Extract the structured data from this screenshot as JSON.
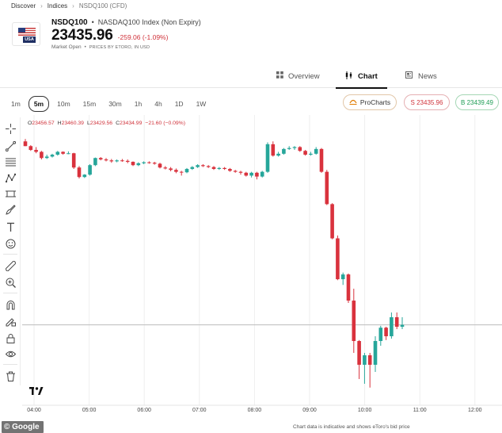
{
  "breadcrumb": {
    "items": [
      "Discover",
      "Indices",
      "NSDQ100 (CFD)"
    ]
  },
  "instrument": {
    "flag_label": "USA",
    "symbol": "NSDQ100",
    "separator": "•",
    "name": "NASDAQ100 Index (Non Expiry)",
    "price": "23435.96",
    "change": "-259.06 (-1.09%)",
    "market_status": "Market Open",
    "status_dot": "•",
    "prices_by": "PRICES BY ETORO, IN USD"
  },
  "tabs": [
    {
      "label": "Overview",
      "icon": "grid-icon",
      "active": false
    },
    {
      "label": "Chart",
      "icon": "candlestick-icon",
      "active": true
    },
    {
      "label": "News",
      "icon": "news-icon",
      "active": false
    }
  ],
  "timeframes": [
    "1m",
    "5m",
    "10m",
    "15m",
    "30m",
    "1h",
    "4h",
    "1D",
    "1W"
  ],
  "active_timeframe": "5m",
  "actions": {
    "prochart_label": "ProCharts",
    "sell_label": "S 23435.96",
    "buy_label": "B 23439.49"
  },
  "ohlc": {
    "o_label": "O",
    "o": "23456.57",
    "h_label": "H",
    "h": "23460.39",
    "l_label": "L",
    "l": "23429.56",
    "c_label": "C",
    "c": "23434.99",
    "chg": "−21.60 (−0.09%)"
  },
  "colors": {
    "up": "#26a69a",
    "down": "#d9323d",
    "current_line": "#bdbdbd",
    "grid": "#eeeeee"
  },
  "toolbar_icons": [
    "crosshair-icon",
    "trend-line-icon",
    "fib-icon",
    "pattern-icon",
    "projection-icon",
    "brush-icon",
    "text-icon",
    "emoji-icon",
    "ruler-icon",
    "zoom-in-icon",
    "magnet-icon",
    "lock-drawing-icon",
    "lock-icon",
    "eye-icon",
    "trash-icon"
  ],
  "chart_data": {
    "type": "candlestick",
    "x_ticks": [
      "04:00",
      "05:00",
      "06:00",
      "07:00",
      "08:00",
      "09:00",
      "10:00",
      "11:00",
      "12:00"
    ],
    "interval": "5m",
    "candles": [
      [
        0.4,
        0.3,
        0.45,
        0.3
      ],
      [
        0.3,
        0.22,
        0.32,
        0.2
      ],
      [
        0.22,
        0.18,
        0.28,
        0.15
      ],
      [
        0.18,
        0.05,
        0.2,
        0.02
      ],
      [
        0.05,
        0.08,
        0.12,
        0.03
      ],
      [
        0.08,
        0.12,
        0.14,
        0.06
      ],
      [
        0.12,
        0.18,
        0.2,
        0.1
      ],
      [
        0.18,
        0.14,
        0.19,
        0.12
      ],
      [
        0.14,
        0.15,
        0.19,
        0.13
      ],
      [
        0.15,
        -0.15,
        0.16,
        -0.18
      ],
      [
        -0.15,
        -0.35,
        -0.12,
        -0.38
      ],
      [
        -0.35,
        -0.3,
        -0.29,
        -0.37
      ],
      [
        -0.3,
        -0.1,
        -0.08,
        -0.32
      ],
      [
        -0.1,
        0.05,
        0.06,
        -0.12
      ],
      [
        0.05,
        0.02,
        0.07,
        0.0
      ],
      [
        0.02,
        0.0,
        0.05,
        -0.02
      ],
      [
        0.0,
        -0.02,
        0.03,
        -0.05
      ],
      [
        -0.02,
        0.0,
        0.02,
        -0.04
      ],
      [
        0.0,
        -0.01,
        0.03,
        -0.03
      ],
      [
        -0.01,
        -0.03,
        0.02,
        -0.06
      ],
      [
        -0.03,
        -0.1,
        -0.02,
        -0.12
      ],
      [
        -0.1,
        -0.06,
        -0.04,
        -0.12
      ],
      [
        -0.06,
        -0.04,
        -0.02,
        -0.08
      ],
      [
        -0.04,
        -0.05,
        -0.02,
        -0.07
      ],
      [
        -0.05,
        -0.07,
        -0.03,
        -0.09
      ],
      [
        -0.07,
        -0.15,
        -0.05,
        -0.17
      ],
      [
        -0.15,
        -0.17,
        -0.12,
        -0.19
      ],
      [
        -0.17,
        -0.2,
        -0.14,
        -0.23
      ],
      [
        -0.2,
        -0.24,
        -0.17,
        -0.27
      ],
      [
        -0.24,
        -0.25,
        -0.22,
        -0.32
      ],
      [
        -0.25,
        -0.18,
        -0.16,
        -0.27
      ],
      [
        -0.18,
        -0.14,
        -0.12,
        -0.2
      ],
      [
        -0.14,
        -0.1,
        -0.08,
        -0.16
      ],
      [
        -0.1,
        -0.12,
        -0.08,
        -0.14
      ],
      [
        -0.12,
        -0.14,
        -0.1,
        -0.16
      ],
      [
        -0.14,
        -0.18,
        -0.12,
        -0.2
      ],
      [
        -0.18,
        -0.16,
        -0.14,
        -0.2
      ],
      [
        -0.16,
        -0.18,
        -0.14,
        -0.2
      ],
      [
        -0.18,
        -0.22,
        -0.16,
        -0.24
      ],
      [
        -0.22,
        -0.24,
        -0.2,
        -0.26
      ],
      [
        -0.24,
        -0.26,
        -0.22,
        -0.3
      ],
      [
        -0.26,
        -0.32,
        -0.24,
        -0.34
      ],
      [
        -0.32,
        -0.26,
        -0.24,
        -0.36
      ],
      [
        -0.26,
        -0.34,
        -0.24,
        -0.4
      ],
      [
        -0.34,
        -0.24,
        -0.22,
        -0.36
      ],
      [
        -0.24,
        0.34,
        0.38,
        -0.26
      ],
      [
        0.34,
        0.1,
        0.4,
        0.08
      ],
      [
        0.1,
        0.14,
        0.18,
        0.08
      ],
      [
        0.14,
        0.24,
        0.26,
        0.12
      ],
      [
        0.24,
        0.26,
        0.3,
        0.22
      ],
      [
        0.26,
        0.28,
        0.3,
        0.22
      ],
      [
        0.28,
        0.2,
        0.3,
        0.18
      ],
      [
        0.2,
        0.12,
        0.22,
        0.1
      ],
      [
        0.12,
        0.14,
        0.18,
        0.1
      ],
      [
        0.14,
        0.24,
        0.28,
        0.12
      ],
      [
        0.24,
        -0.24,
        0.26,
        -0.26
      ],
      [
        -0.24,
        -0.92,
        -0.2,
        -0.94
      ],
      [
        -0.92,
        -1.64,
        -0.9,
        -1.66
      ],
      [
        -1.64,
        -2.5,
        -1.58,
        -2.52
      ],
      [
        -2.5,
        -2.4,
        -2.36,
        -2.62
      ],
      [
        -2.4,
        -2.95,
        -2.38,
        -3.0
      ],
      [
        -2.95,
        -3.8,
        -2.7,
        -4.05
      ],
      [
        -3.8,
        -4.3,
        -3.78,
        -4.6
      ],
      [
        -4.3,
        -4.1,
        -4.05,
        -4.7
      ],
      [
        -4.1,
        -4.3,
        -4.05,
        -4.78
      ],
      [
        -4.3,
        -3.8,
        -3.7,
        -4.45
      ],
      [
        -3.8,
        -3.52,
        -3.48,
        -3.9
      ],
      [
        -3.52,
        -3.7,
        -3.5,
        -3.78
      ],
      [
        -3.7,
        -3.3,
        -3.2,
        -3.75
      ],
      [
        -3.3,
        -3.5,
        -3.2,
        -3.55
      ],
      [
        -3.5,
        -3.46,
        -3.3,
        -3.55
      ]
    ]
  }
}
